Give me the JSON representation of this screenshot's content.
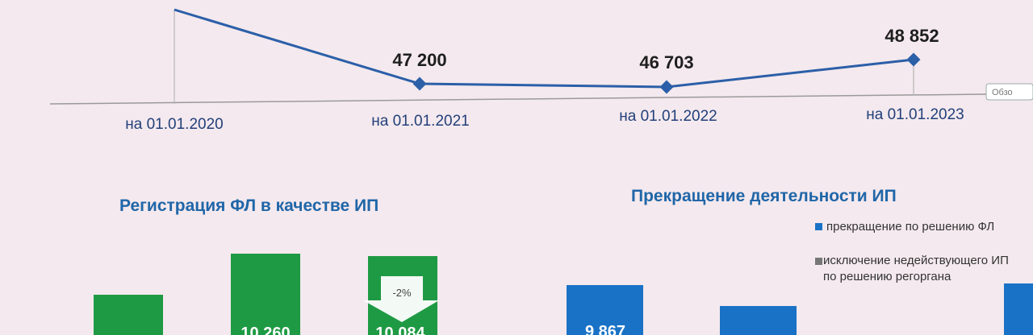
{
  "colors": {
    "background": "#f4e9ee",
    "line": "#2b5fa8",
    "axis": "#9a9a9a",
    "green_bar": "#1f9a44",
    "blue_bar": "#1a72c6",
    "title": "#2066a8"
  },
  "chart_data": [
    {
      "type": "line",
      "x": [
        "на 01.01.2020",
        "на 01.01.2021",
        "на 01.01.2022",
        "на 01.01.2023"
      ],
      "series": [
        {
          "values": [
            null,
            47200,
            46703,
            48852
          ],
          "data_labels": [
            "",
            "47 200",
            "46 703",
            "48 852"
          ]
        }
      ],
      "cut_button_label": "Обзо",
      "grid": false
    },
    {
      "type": "bar",
      "title": "Регистрация ФЛ в качестве ИП",
      "series": [
        {
          "values": [
            null,
            10260,
            10084
          ]
        }
      ],
      "data_labels": [
        "",
        "10 260",
        "10 084"
      ],
      "annotation": "-2%",
      "note": "bars cropped at bottom of image"
    },
    {
      "type": "bar",
      "title": "Прекращение деятельности ИП",
      "legend": [
        "прекращение по решению ФЛ",
        "исключение недействующего ИП по решению регоргана"
      ],
      "series": [
        {
          "values": [
            9867,
            null,
            null
          ]
        }
      ],
      "data_labels": [
        "9 867",
        "",
        ""
      ],
      "note": "bars cropped at bottom of image"
    }
  ]
}
